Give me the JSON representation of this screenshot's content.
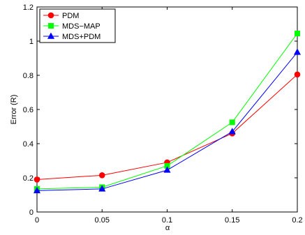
{
  "chart_data": {
    "type": "line",
    "title": "",
    "xlabel": "α",
    "ylabel": "Error (R)",
    "x": [
      0,
      0.05,
      0.1,
      0.15,
      0.2
    ],
    "x_tick_labels": [
      "0",
      "0.05",
      "0.1",
      "0.15",
      "0.2"
    ],
    "y_tick_labels": [
      "0",
      "0.2",
      "0.4",
      "0.6",
      "0.8",
      "1",
      "1.2"
    ],
    "xlim": [
      0,
      0.2
    ],
    "ylim": [
      0,
      1.2
    ],
    "grid": false,
    "legend_position": "top-left",
    "series": [
      {
        "name": "PDM",
        "color": "#ff0000",
        "marker": "circle",
        "values": [
          0.19,
          0.215,
          0.29,
          0.46,
          0.805
        ]
      },
      {
        "name": "MDS−MAP",
        "color": "#00ff00",
        "marker": "square",
        "values": [
          0.135,
          0.145,
          0.27,
          0.525,
          1.045
        ]
      },
      {
        "name": "MDS+PDM",
        "color": "#0000ff",
        "marker": "triangle",
        "values": [
          0.125,
          0.135,
          0.245,
          0.47,
          0.935
        ]
      }
    ]
  }
}
